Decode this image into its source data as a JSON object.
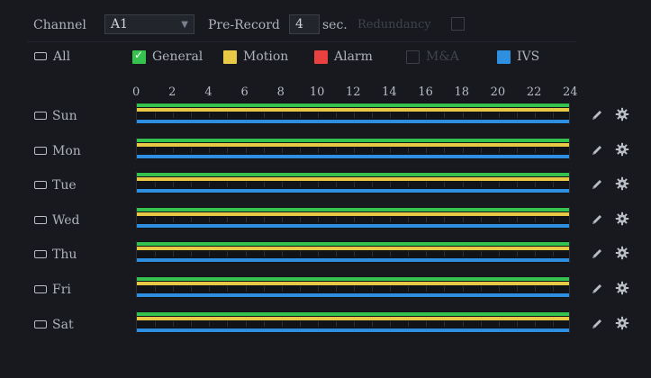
{
  "toolbar": {
    "channel_label": "Channel",
    "channel_value": "A1",
    "prerecord_label": "Pre-Record",
    "prerecord_value": "4",
    "prerecord_unit": "sec.",
    "redundancy_label": "Redundancy"
  },
  "legend": {
    "all_label": "All",
    "items": [
      {
        "label": "General",
        "color": "#35c24f",
        "checked": true
      },
      {
        "label": "Motion",
        "color": "#e7c945"
      },
      {
        "label": "Alarm",
        "color": "#e94040"
      },
      {
        "label": "M&A",
        "color": "#3b3f48"
      },
      {
        "label": "IVS",
        "color": "#2e8fe0"
      }
    ]
  },
  "axis": {
    "ticks": [
      "0",
      "2",
      "4",
      "6",
      "8",
      "10",
      "12",
      "14",
      "16",
      "18",
      "20",
      "22",
      "24"
    ]
  },
  "days": [
    {
      "label": "Sun",
      "general": [
        0,
        24
      ],
      "motion": [
        0,
        24
      ],
      "ivs": [
        0,
        24
      ]
    },
    {
      "label": "Mon",
      "general": [
        0,
        24
      ],
      "motion": [
        0,
        24
      ],
      "ivs": [
        0,
        24
      ]
    },
    {
      "label": "Tue",
      "general": [
        0,
        24
      ],
      "motion": [
        0,
        24
      ],
      "ivs": [
        0,
        24
      ]
    },
    {
      "label": "Wed",
      "general": [
        0,
        24
      ],
      "motion": [
        0,
        24
      ],
      "ivs": [
        0,
        24
      ]
    },
    {
      "label": "Thu",
      "general": [
        0,
        24
      ],
      "motion": [
        0,
        24
      ],
      "ivs": [
        0,
        24
      ]
    },
    {
      "label": "Fri",
      "general": [
        0,
        24
      ],
      "motion": [
        0,
        24
      ],
      "ivs": [
        0,
        24
      ]
    },
    {
      "label": "Sat",
      "general": [
        0,
        24
      ],
      "motion": [
        0,
        24
      ],
      "ivs": [
        0,
        24
      ]
    }
  ],
  "icons": {
    "edit": "pencil-icon",
    "settings": "gear-icon",
    "day_checkbox": "checkbox-icon"
  }
}
